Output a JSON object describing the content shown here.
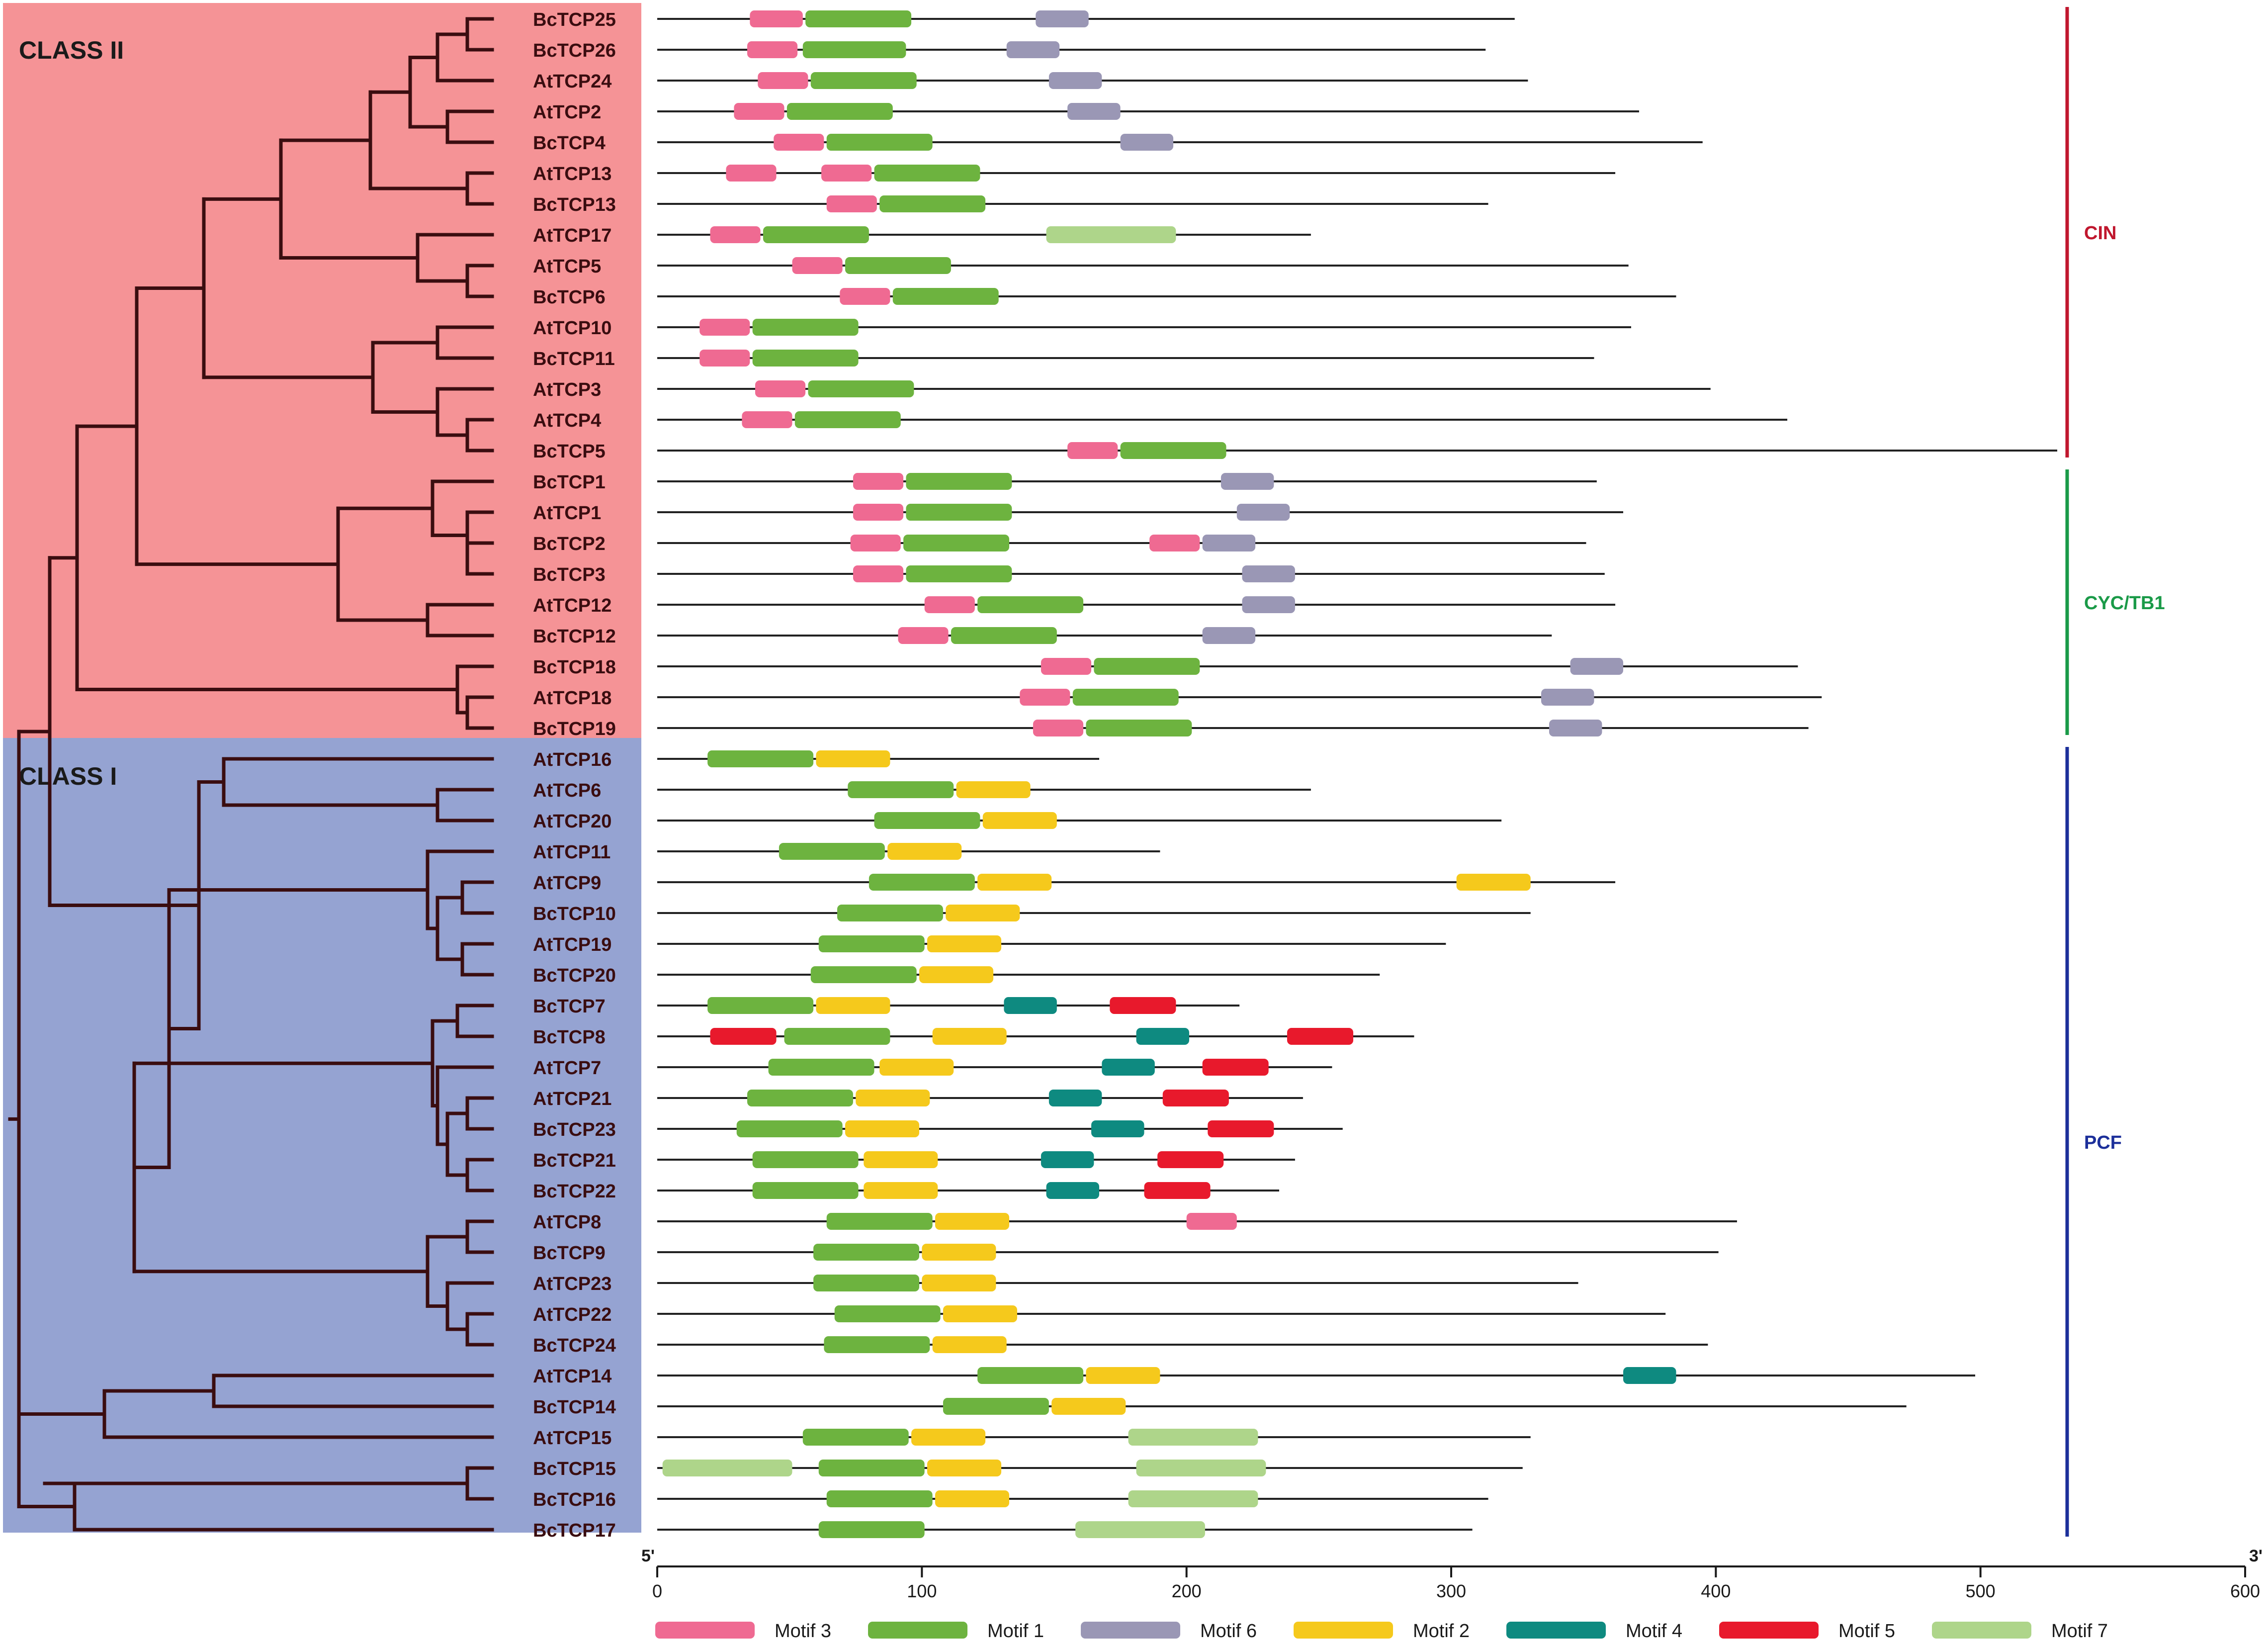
{
  "figure": {
    "class_labels": {
      "class2": "CLASS II",
      "class1": "CLASS I"
    },
    "colors": {
      "class2_bg": "#f59396",
      "class1_bg": "#95a3d2",
      "tree": "#3a0d10",
      "backbone": "#222222"
    },
    "subfamilies": [
      {
        "name": "CIN",
        "color": "#c0172e",
        "first": 0,
        "last": 14
      },
      {
        "name": "CYC/TB1",
        "color": "#1a9a48",
        "first": 15,
        "last": 23
      },
      {
        "name": "PCF",
        "color": "#1c2f9a",
        "first": 24,
        "last": 49
      }
    ]
  },
  "motif_legend": [
    {
      "key": "m3",
      "label": "Motif 3",
      "color": "#ef6a92"
    },
    {
      "key": "m1",
      "label": "Motif 1",
      "color": "#6db33f"
    },
    {
      "key": "m6",
      "label": "Motif 6",
      "color": "#9a97b5"
    },
    {
      "key": "m2",
      "label": "Motif 2",
      "color": "#f5c91c"
    },
    {
      "key": "m4",
      "label": "Motif 4",
      "color": "#0e8a80"
    },
    {
      "key": "m5",
      "label": "Motif 5",
      "color": "#e8192c"
    },
    {
      "key": "m7",
      "label": "Motif 7",
      "color": "#aed58a"
    }
  ],
  "axis": {
    "start_label": "5'",
    "end_label": "3'",
    "min": 0,
    "max": 600,
    "ticks": [
      0,
      100,
      200,
      300,
      400,
      500,
      600
    ]
  },
  "chart_data": {
    "type": "motif-map",
    "genes": [
      {
        "name": "BcTCP25",
        "length": 324,
        "motifs": [
          [
            "m3",
            35,
            55
          ],
          [
            "m1",
            56,
            96
          ],
          [
            "m6",
            143,
            163
          ]
        ]
      },
      {
        "name": "BcTCP26",
        "length": 313,
        "motifs": [
          [
            "m3",
            34,
            53
          ],
          [
            "m1",
            55,
            94
          ],
          [
            "m6",
            132,
            152
          ]
        ]
      },
      {
        "name": "AtTCP24",
        "length": 329,
        "motifs": [
          [
            "m3",
            38,
            57
          ],
          [
            "m1",
            58,
            98
          ],
          [
            "m6",
            148,
            168
          ]
        ]
      },
      {
        "name": "AtTCP2",
        "length": 371,
        "motifs": [
          [
            "m3",
            29,
            48
          ],
          [
            "m1",
            49,
            89
          ],
          [
            "m6",
            155,
            175
          ]
        ]
      },
      {
        "name": "BcTCP4",
        "length": 395,
        "motifs": [
          [
            "m3",
            44,
            63
          ],
          [
            "m1",
            64,
            104
          ],
          [
            "m6",
            175,
            195
          ]
        ]
      },
      {
        "name": "AtTCP13",
        "length": 362,
        "motifs": [
          [
            "m3",
            26,
            45
          ],
          [
            "m3",
            62,
            81
          ],
          [
            "m1",
            82,
            122
          ]
        ]
      },
      {
        "name": "BcTCP13",
        "length": 314,
        "motifs": [
          [
            "m3",
            64,
            83
          ],
          [
            "m1",
            84,
            124
          ]
        ]
      },
      {
        "name": "AtTCP17",
        "length": 247,
        "motifs": [
          [
            "m3",
            20,
            39
          ],
          [
            "m1",
            40,
            80
          ],
          [
            "m7",
            147,
            196
          ]
        ]
      },
      {
        "name": "AtTCP5",
        "length": 367,
        "motifs": [
          [
            "m3",
            51,
            70
          ],
          [
            "m1",
            71,
            111
          ]
        ]
      },
      {
        "name": "BcTCP6",
        "length": 385,
        "motifs": [
          [
            "m3",
            69,
            88
          ],
          [
            "m1",
            89,
            129
          ]
        ]
      },
      {
        "name": "AtTCP10",
        "length": 368,
        "motifs": [
          [
            "m3",
            16,
            35
          ],
          [
            "m1",
            36,
            76
          ]
        ]
      },
      {
        "name": "BcTCP11",
        "length": 354,
        "motifs": [
          [
            "m3",
            16,
            35
          ],
          [
            "m1",
            36,
            76
          ]
        ]
      },
      {
        "name": "AtTCP3",
        "length": 398,
        "motifs": [
          [
            "m3",
            37,
            56
          ],
          [
            "m1",
            57,
            97
          ]
        ]
      },
      {
        "name": "AtTCP4",
        "length": 427,
        "motifs": [
          [
            "m3",
            32,
            51
          ],
          [
            "m1",
            52,
            92
          ]
        ]
      },
      {
        "name": "BcTCP5",
        "length": 529,
        "motifs": [
          [
            "m3",
            155,
            174
          ],
          [
            "m1",
            175,
            215
          ]
        ]
      },
      {
        "name": "BcTCP1",
        "length": 355,
        "motifs": [
          [
            "m3",
            74,
            93
          ],
          [
            "m1",
            94,
            134
          ],
          [
            "m6",
            213,
            233
          ]
        ]
      },
      {
        "name": "AtTCP1",
        "length": 365,
        "motifs": [
          [
            "m3",
            74,
            93
          ],
          [
            "m1",
            94,
            134
          ],
          [
            "m6",
            219,
            239
          ]
        ]
      },
      {
        "name": "BcTCP2",
        "length": 351,
        "motifs": [
          [
            "m3",
            73,
            92
          ],
          [
            "m1",
            93,
            133
          ],
          [
            "m3",
            186,
            205
          ],
          [
            "m6",
            206,
            226
          ]
        ]
      },
      {
        "name": "BcTCP3",
        "length": 358,
        "motifs": [
          [
            "m3",
            74,
            93
          ],
          [
            "m1",
            94,
            134
          ],
          [
            "m6",
            221,
            241
          ]
        ]
      },
      {
        "name": "AtTCP12",
        "length": 362,
        "motifs": [
          [
            "m3",
            101,
            120
          ],
          [
            "m1",
            121,
            161
          ],
          [
            "m6",
            221,
            241
          ]
        ]
      },
      {
        "name": "BcTCP12",
        "length": 338,
        "motifs": [
          [
            "m3",
            91,
            110
          ],
          [
            "m1",
            111,
            151
          ],
          [
            "m6",
            206,
            226
          ]
        ]
      },
      {
        "name": "BcTCP18",
        "length": 431,
        "motifs": [
          [
            "m3",
            145,
            164
          ],
          [
            "m1",
            165,
            205
          ],
          [
            "m6",
            345,
            365
          ]
        ]
      },
      {
        "name": "AtTCP18",
        "length": 440,
        "motifs": [
          [
            "m3",
            137,
            156
          ],
          [
            "m1",
            157,
            197
          ],
          [
            "m6",
            334,
            354
          ]
        ]
      },
      {
        "name": "BcTCP19",
        "length": 435,
        "motifs": [
          [
            "m3",
            142,
            161
          ],
          [
            "m1",
            162,
            202
          ],
          [
            "m6",
            337,
            357
          ]
        ]
      },
      {
        "name": "AtTCP16",
        "length": 167,
        "motifs": [
          [
            "m1",
            19,
            59
          ],
          [
            "m2",
            60,
            88
          ]
        ]
      },
      {
        "name": "AtTCP6",
        "length": 247,
        "motifs": [
          [
            "m1",
            72,
            112
          ],
          [
            "m2",
            113,
            141
          ]
        ]
      },
      {
        "name": "AtTCP20",
        "length": 319,
        "motifs": [
          [
            "m1",
            82,
            122
          ],
          [
            "m2",
            123,
            151
          ]
        ]
      },
      {
        "name": "AtTCP11",
        "length": 190,
        "motifs": [
          [
            "m1",
            46,
            86
          ],
          [
            "m2",
            87,
            115
          ]
        ]
      },
      {
        "name": "AtTCP9",
        "length": 362,
        "motifs": [
          [
            "m1",
            80,
            120
          ],
          [
            "m2",
            121,
            149
          ],
          [
            "m2",
            302,
            330
          ]
        ]
      },
      {
        "name": "BcTCP10",
        "length": 330,
        "motifs": [
          [
            "m1",
            68,
            108
          ],
          [
            "m2",
            109,
            137
          ]
        ]
      },
      {
        "name": "AtTCP19",
        "length": 298,
        "motifs": [
          [
            "m1",
            61,
            101
          ],
          [
            "m2",
            102,
            130
          ]
        ]
      },
      {
        "name": "BcTCP20",
        "length": 273,
        "motifs": [
          [
            "m1",
            58,
            98
          ],
          [
            "m2",
            99,
            127
          ]
        ]
      },
      {
        "name": "BcTCP7",
        "length": 220,
        "motifs": [
          [
            "m1",
            19,
            59
          ],
          [
            "m2",
            60,
            88
          ],
          [
            "m4",
            131,
            151
          ],
          [
            "m5",
            171,
            196
          ]
        ]
      },
      {
        "name": "BcTCP8",
        "length": 286,
        "motifs": [
          [
            "m5",
            20,
            45
          ],
          [
            "m1",
            48,
            88
          ],
          [
            "m2",
            104,
            132
          ],
          [
            "m4",
            181,
            201
          ],
          [
            "m5",
            238,
            263
          ]
        ]
      },
      {
        "name": "AtTCP7",
        "length": 255,
        "motifs": [
          [
            "m1",
            42,
            82
          ],
          [
            "m2",
            84,
            112
          ],
          [
            "m4",
            168,
            188
          ],
          [
            "m5",
            206,
            231
          ]
        ]
      },
      {
        "name": "AtTCP21",
        "length": 244,
        "motifs": [
          [
            "m1",
            34,
            74
          ],
          [
            "m2",
            75,
            103
          ],
          [
            "m4",
            148,
            168
          ],
          [
            "m5",
            191,
            216
          ]
        ]
      },
      {
        "name": "BcTCP23",
        "length": 259,
        "motifs": [
          [
            "m1",
            30,
            70
          ],
          [
            "m2",
            71,
            99
          ],
          [
            "m4",
            164,
            184
          ],
          [
            "m5",
            208,
            233
          ]
        ]
      },
      {
        "name": "BcTCP21",
        "length": 241,
        "motifs": [
          [
            "m1",
            36,
            76
          ],
          [
            "m2",
            78,
            106
          ],
          [
            "m4",
            145,
            165
          ],
          [
            "m5",
            189,
            214
          ]
        ]
      },
      {
        "name": "BcTCP22",
        "length": 235,
        "motifs": [
          [
            "m1",
            36,
            76
          ],
          [
            "m2",
            78,
            106
          ],
          [
            "m4",
            147,
            167
          ],
          [
            "m5",
            184,
            209
          ]
        ]
      },
      {
        "name": "AtTCP8",
        "length": 408,
        "motifs": [
          [
            "m1",
            64,
            104
          ],
          [
            "m2",
            105,
            133
          ],
          [
            "m3",
            200,
            219
          ]
        ]
      },
      {
        "name": "BcTCP9",
        "length": 401,
        "motifs": [
          [
            "m1",
            59,
            99
          ],
          [
            "m2",
            100,
            128
          ]
        ]
      },
      {
        "name": "AtTCP23",
        "length": 348,
        "motifs": [
          [
            "m1",
            59,
            99
          ],
          [
            "m2",
            100,
            128
          ]
        ]
      },
      {
        "name": "AtTCP22",
        "length": 381,
        "motifs": [
          [
            "m1",
            67,
            107
          ],
          [
            "m2",
            108,
            136
          ]
        ]
      },
      {
        "name": "BcTCP24",
        "length": 397,
        "motifs": [
          [
            "m1",
            63,
            103
          ],
          [
            "m2",
            104,
            132
          ]
        ]
      },
      {
        "name": "AtTCP14",
        "length": 498,
        "motifs": [
          [
            "m1",
            121,
            161
          ],
          [
            "m2",
            162,
            190
          ],
          [
            "m4",
            365,
            385
          ]
        ]
      },
      {
        "name": "BcTCP14",
        "length": 472,
        "motifs": [
          [
            "m1",
            108,
            148
          ],
          [
            "m2",
            149,
            177
          ]
        ]
      },
      {
        "name": "AtTCP15",
        "length": 330,
        "motifs": [
          [
            "m1",
            55,
            95
          ],
          [
            "m2",
            96,
            124
          ],
          [
            "m7",
            178,
            227
          ]
        ]
      },
      {
        "name": "BcTCP15",
        "length": 327,
        "motifs": [
          [
            "m7",
            2,
            51
          ],
          [
            "m1",
            61,
            101
          ],
          [
            "m2",
            102,
            130
          ],
          [
            "m7",
            181,
            230
          ]
        ]
      },
      {
        "name": "BcTCP16",
        "length": 314,
        "motifs": [
          [
            "m1",
            64,
            104
          ],
          [
            "m2",
            105,
            133
          ],
          [
            "m7",
            178,
            227
          ]
        ]
      },
      {
        "name": "BcTCP17",
        "length": 308,
        "motifs": [
          [
            "m1",
            61,
            101
          ],
          [
            "m7",
            158,
            207
          ]
        ]
      }
    ]
  }
}
